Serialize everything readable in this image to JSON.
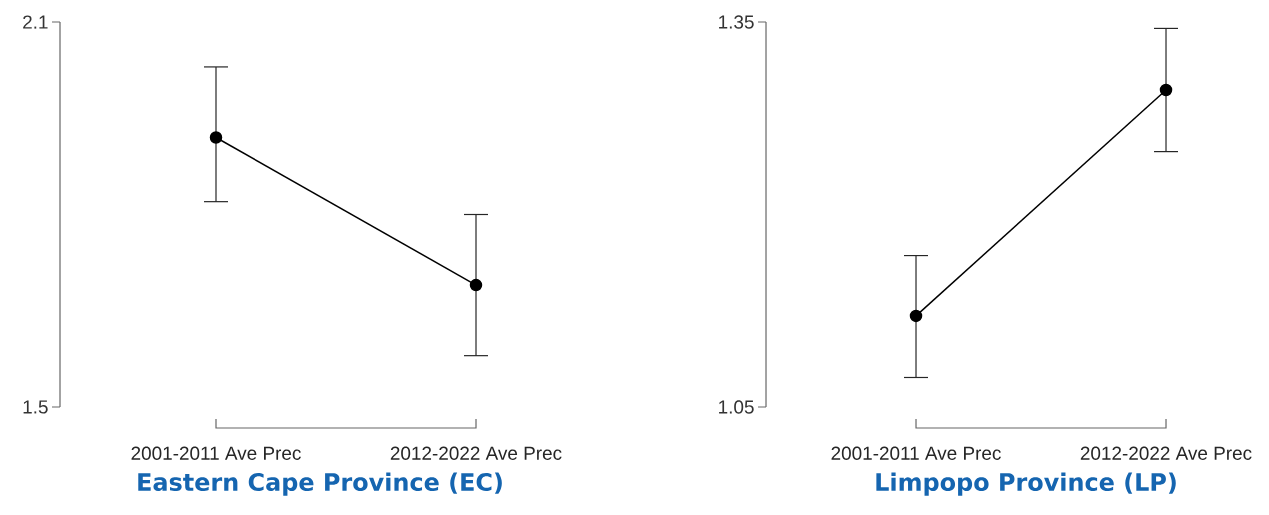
{
  "chart_data": [
    {
      "type": "line",
      "title": "Eastern Cape Province (EC)",
      "categories": [
        "2001-2011 Ave Prec",
        "2012-2022 Ave Prec"
      ],
      "values": [
        1.92,
        1.69
      ],
      "errors": [
        [
          1.82,
          2.03
        ],
        [
          1.58,
          1.8
        ]
      ],
      "color": "#000000",
      "marker": "circle",
      "ylim": [
        1.5,
        2.1
      ],
      "yticks": [
        1.5,
        2.1
      ]
    },
    {
      "type": "line",
      "title": "Limpopo Province (LP)",
      "categories": [
        "2001-2011 Ave Prec",
        "2012-2022 Ave Prec"
      ],
      "values": [
        1.121,
        1.297
      ],
      "errors": [
        [
          1.073,
          1.168
        ],
        [
          1.249,
          1.345
        ]
      ],
      "color": "#000000",
      "marker": "circle",
      "ylim": [
        1.05,
        1.35
      ],
      "yticks": [
        1.05,
        1.35
      ]
    }
  ]
}
